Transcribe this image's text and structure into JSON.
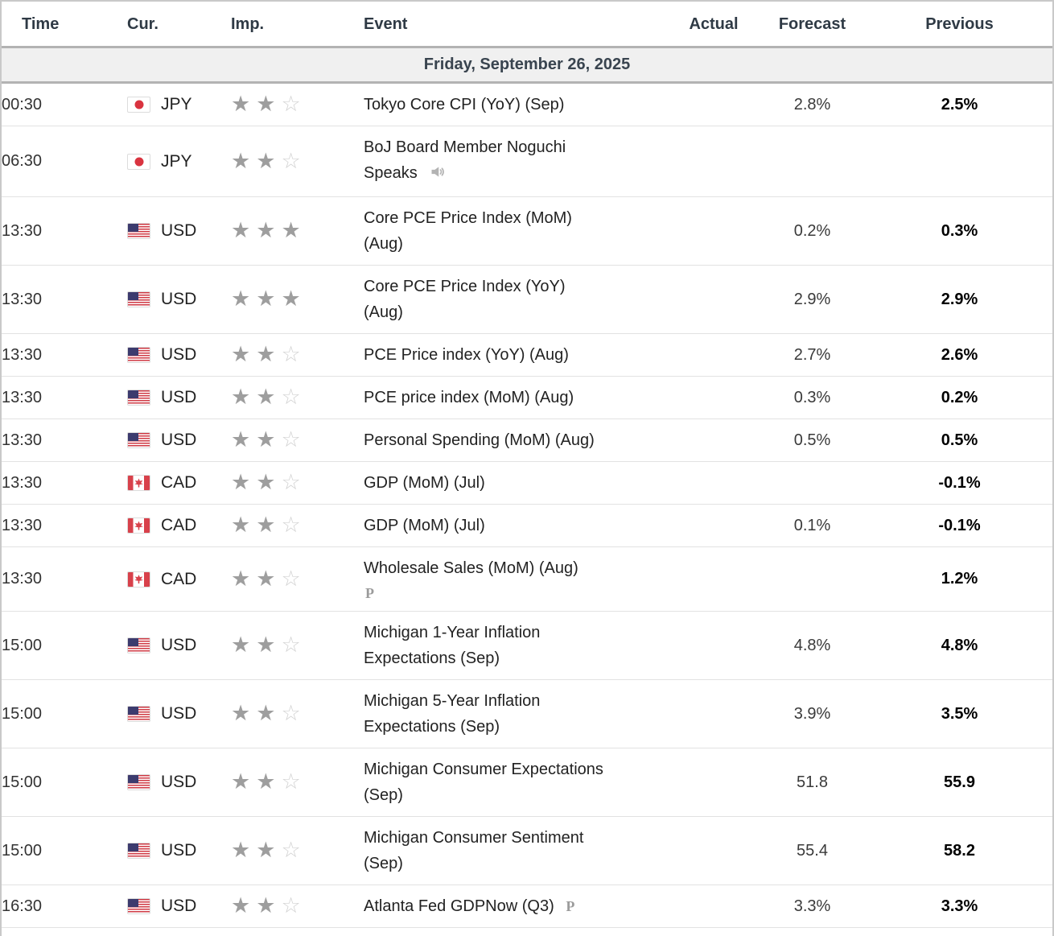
{
  "table": {
    "columns": [
      {
        "label": "Time"
      },
      {
        "label": "Cur."
      },
      {
        "label": "Imp."
      },
      {
        "label": "Event"
      },
      {
        "label": "Actual"
      },
      {
        "label": "Forecast"
      },
      {
        "label": "Previous"
      }
    ],
    "date_header": "Friday, September 26, 2025",
    "max_importance": 3,
    "rows": [
      {
        "time": "00:30",
        "currency": "JPY",
        "flag": "jp",
        "importance": 2,
        "event": "Tokyo Core CPI (YoY) (Sep)",
        "speaker": false,
        "preliminary": "",
        "actual": "",
        "forecast": "2.8%",
        "previous": "2.5%"
      },
      {
        "time": "06:30",
        "currency": "JPY",
        "flag": "jp",
        "importance": 2,
        "event": "BoJ Board Member Noguchi Speaks",
        "speaker": true,
        "preliminary": "",
        "actual": "",
        "forecast": "",
        "previous": ""
      },
      {
        "time": "13:30",
        "currency": "USD",
        "flag": "us",
        "importance": 3,
        "event": "Core PCE Price Index (MoM) (Aug)",
        "speaker": false,
        "preliminary": "",
        "actual": "",
        "forecast": "0.2%",
        "previous": "0.3%"
      },
      {
        "time": "13:30",
        "currency": "USD",
        "flag": "us",
        "importance": 3,
        "event": "Core PCE Price Index (YoY) (Aug)",
        "speaker": false,
        "preliminary": "",
        "actual": "",
        "forecast": "2.9%",
        "previous": "2.9%"
      },
      {
        "time": "13:30",
        "currency": "USD",
        "flag": "us",
        "importance": 2,
        "event": "PCE Price index (YoY) (Aug)",
        "speaker": false,
        "preliminary": "",
        "actual": "",
        "forecast": "2.7%",
        "previous": "2.6%"
      },
      {
        "time": "13:30",
        "currency": "USD",
        "flag": "us",
        "importance": 2,
        "event": "PCE price index (MoM) (Aug)",
        "speaker": false,
        "preliminary": "",
        "actual": "",
        "forecast": "0.3%",
        "previous": "0.2%"
      },
      {
        "time": "13:30",
        "currency": "USD",
        "flag": "us",
        "importance": 2,
        "event": "Personal Spending (MoM) (Aug)",
        "speaker": false,
        "preliminary": "",
        "actual": "",
        "forecast": "0.5%",
        "previous": "0.5%"
      },
      {
        "time": "13:30",
        "currency": "CAD",
        "flag": "ca",
        "importance": 2,
        "event": "GDP (MoM) (Jul)",
        "speaker": false,
        "preliminary": "",
        "actual": "",
        "forecast": "",
        "previous": "-0.1%"
      },
      {
        "time": "13:30",
        "currency": "CAD",
        "flag": "ca",
        "importance": 2,
        "event": "GDP (MoM) (Jul)",
        "speaker": false,
        "preliminary": "",
        "actual": "",
        "forecast": "0.1%",
        "previous": "-0.1%"
      },
      {
        "time": "13:30",
        "currency": "CAD",
        "flag": "ca",
        "importance": 2,
        "event": "Wholesale Sales (MoM) (Aug)",
        "speaker": false,
        "preliminary": "block",
        "actual": "",
        "forecast": "",
        "previous": "1.2%"
      },
      {
        "time": "15:00",
        "currency": "USD",
        "flag": "us",
        "importance": 2,
        "event": "Michigan 1-Year Inflation Expectations (Sep)",
        "speaker": false,
        "preliminary": "",
        "actual": "",
        "forecast": "4.8%",
        "previous": "4.8%"
      },
      {
        "time": "15:00",
        "currency": "USD",
        "flag": "us",
        "importance": 2,
        "event": "Michigan 5-Year Inflation Expectations (Sep)",
        "speaker": false,
        "preliminary": "",
        "actual": "",
        "forecast": "3.9%",
        "previous": "3.5%"
      },
      {
        "time": "15:00",
        "currency": "USD",
        "flag": "us",
        "importance": 2,
        "event": "Michigan Consumer Expectations (Sep)",
        "speaker": false,
        "preliminary": "",
        "actual": "",
        "forecast": "51.8",
        "previous": "55.9"
      },
      {
        "time": "15:00",
        "currency": "USD",
        "flag": "us",
        "importance": 2,
        "event": "Michigan Consumer Sentiment (Sep)",
        "speaker": false,
        "preliminary": "",
        "actual": "",
        "forecast": "55.4",
        "previous": "58.2"
      },
      {
        "time": "16:30",
        "currency": "USD",
        "flag": "us",
        "importance": 2,
        "event": "Atlanta Fed GDPNow (Q3)",
        "speaker": false,
        "preliminary": "inline",
        "actual": "",
        "forecast": "3.3%",
        "previous": "3.3%"
      }
    ]
  },
  "icons": {
    "preliminary_glyph": "P",
    "star_filled": "★",
    "star_outline": "☆"
  },
  "colors": {
    "header_text": "#2f3a45",
    "date_row_bg": "#f0f0f0",
    "date_row_border": "#b3b3b3",
    "row_border": "#e2e2e2",
    "star_filled": "#9e9e9e",
    "star_outline": "#d2d2d2",
    "flag_red": "#d8414b",
    "us_canton_blue": "#3c3b6e",
    "previous_value": "#000000",
    "forecast_value": "#3a3a3a"
  }
}
